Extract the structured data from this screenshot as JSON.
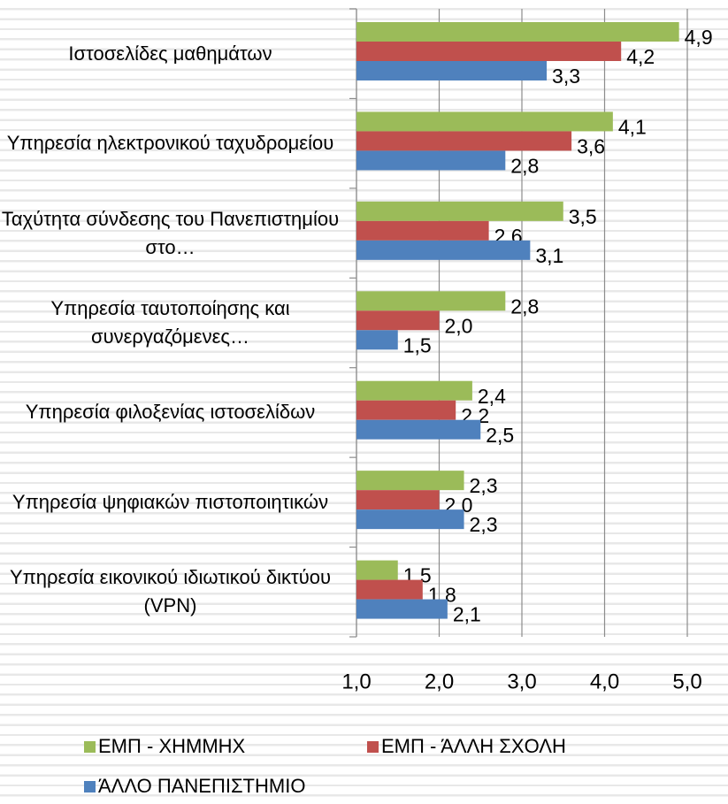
{
  "chart_data": {
    "type": "barh",
    "categories": [
      "Ιστοσελίδες μαθημάτων",
      "Υπηρεσία ηλεκτρονικού ταχυδρομείου",
      "Ταχύτητα σύνδεσης του Πανεπιστημίου στο…",
      "Υπηρεσία ταυτοποίησης και συνεργαζόμενες…",
      "Υπηρεσία φιλοξενίας ιστοσελίδων",
      "Υπηρεσία ψηφιακών πιστοποιητικών",
      "Υπηρεσία εικονικού ιδιωτικού δικτύου (VPN)"
    ],
    "series": [
      {
        "name": "ΕΜΠ - ΧΗΜΜΗΧ",
        "color": "#9bbb59",
        "values": [
          4.9,
          4.1,
          3.5,
          2.8,
          2.4,
          2.3,
          1.5
        ],
        "value_labels": [
          "4,9",
          "4,1",
          "3,5",
          "2,8",
          "2,4",
          "2,3",
          "1,5"
        ]
      },
      {
        "name": "ΕΜΠ - ΆΛΛΗ ΣΧΟΛΗ",
        "color": "#c0504d",
        "values": [
          4.2,
          3.6,
          2.6,
          2.0,
          2.2,
          2.0,
          1.8
        ],
        "value_labels": [
          "4,2",
          "3,6",
          "2,6",
          "2,0",
          "2,2",
          "2,0",
          "1,8"
        ]
      },
      {
        "name": "ΆΛΛΟ ΠΑΝΕΠΙΣΤΗΜΙΟ",
        "color": "#4f81bd",
        "values": [
          3.3,
          2.8,
          3.1,
          1.5,
          2.5,
          2.3,
          2.1
        ],
        "value_labels": [
          "3,3",
          "2,8",
          "3,1",
          "1,5",
          "2,5",
          "2,3",
          "2,1"
        ]
      }
    ],
    "xlim": [
      1,
      5
    ],
    "xticks": [
      {
        "value": 1,
        "label": "1,0"
      },
      {
        "value": 2,
        "label": "2,0"
      },
      {
        "value": 3,
        "label": "3,0"
      },
      {
        "value": 4,
        "label": "4,0"
      },
      {
        "value": 5,
        "label": "5,0"
      }
    ],
    "grid": true
  }
}
